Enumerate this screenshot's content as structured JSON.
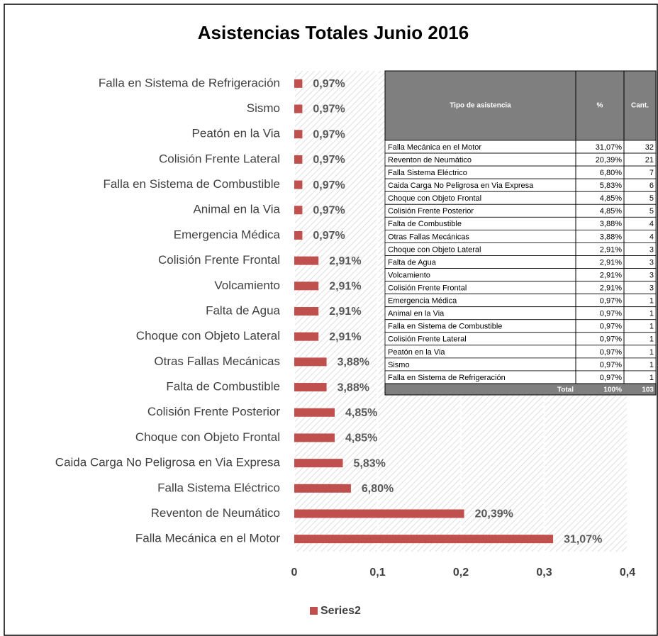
{
  "chart_data": {
    "type": "bar",
    "orientation": "horizontal",
    "title": "Asistencias Totales Junio 2016",
    "categories": [
      "Falla en Sistema de Refrigeración",
      "Sismo",
      "Peatón en la Via",
      "Colisión Frente Lateral",
      "Falla en Sistema de Combustible",
      "Animal en la Via",
      "Emergencia Médica",
      "Colisión Frente Frontal",
      "Volcamiento",
      "Falta de Agua",
      "Choque con Objeto Lateral",
      "Otras Fallas Mecánicas",
      "Falta de Combustible",
      "Colisión Frente Posterior",
      "Choque con Objeto Frontal",
      "Caida Carga No Peligrosa en Via Expresa",
      "Falla Sistema Eléctrico",
      "Reventon de Neumático",
      "Falla Mecánica en el Motor"
    ],
    "series": [
      {
        "name": "Series2",
        "color": "#c0504d",
        "values": [
          0.0097,
          0.0097,
          0.0097,
          0.0097,
          0.0097,
          0.0097,
          0.0097,
          0.0291,
          0.0291,
          0.0291,
          0.0291,
          0.0388,
          0.0388,
          0.0485,
          0.0485,
          0.0583,
          0.068,
          0.2039,
          0.3107
        ],
        "value_labels": [
          "0,97%",
          "0,97%",
          "0,97%",
          "0,97%",
          "0,97%",
          "0,97%",
          "0,97%",
          "2,91%",
          "2,91%",
          "2,91%",
          "2,91%",
          "3,88%",
          "3,88%",
          "4,85%",
          "4,85%",
          "5,83%",
          "6,80%",
          "20,39%",
          "31,07%"
        ]
      }
    ],
    "xlim": [
      0,
      0.4
    ],
    "xticks": [
      0,
      {
        "value": 0.1,
        "label": "0,1"
      },
      {
        "value": 0.2,
        "label": "0,2"
      },
      {
        "value": 0.3,
        "label": "0,3"
      },
      {
        "value": 0.4,
        "label": "0,4"
      }
    ],
    "grid": true,
    "legend": "bottom"
  },
  "table": {
    "headers": [
      "Tipo de asistencia",
      "%",
      "Cant."
    ],
    "rows": [
      [
        "Falla Mecánica en el Motor",
        "31,07%",
        32
      ],
      [
        "Reventon de Neumático",
        "20,39%",
        21
      ],
      [
        "Falla Sistema Eléctrico",
        "6,80%",
        7
      ],
      [
        "Caida Carga No Peligrosa en Via Expresa",
        "5,83%",
        6
      ],
      [
        "Choque con Objeto Frontal",
        "4,85%",
        5
      ],
      [
        "Colisión Frente Posterior",
        "4,85%",
        5
      ],
      [
        "Falta de Combustible",
        "3,88%",
        4
      ],
      [
        "Otras Fallas Mecánicas",
        "3,88%",
        4
      ],
      [
        "Choque con Objeto Lateral",
        "2,91%",
        3
      ],
      [
        "Falta de Agua",
        "2,91%",
        3
      ],
      [
        "Volcamiento",
        "2,91%",
        3
      ],
      [
        "Colisión Frente Frontal",
        "2,91%",
        3
      ],
      [
        "Emergencia Médica",
        "0,97%",
        1
      ],
      [
        "Animal en la Via",
        "0,97%",
        1
      ],
      [
        "Falla en Sistema de Combustible",
        "0,97%",
        1
      ],
      [
        "Colisión Frente Lateral",
        "0,97%",
        1
      ],
      [
        "Peatón en la Via",
        "0,97%",
        1
      ],
      [
        "Sismo",
        "0,97%",
        1
      ],
      [
        "Falla en Sistema de Refrigeración",
        "0,97%",
        1
      ]
    ],
    "total": [
      "Total",
      "100%",
      103
    ]
  }
}
